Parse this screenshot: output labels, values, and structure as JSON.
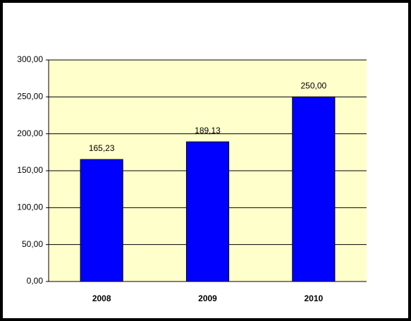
{
  "chart_data": {
    "type": "bar",
    "categories": [
      "2008",
      "2009",
      "2010"
    ],
    "values": [
      165.23,
      189.13,
      250
    ],
    "value_labels": [
      "165,23",
      "189,13",
      "250,00"
    ],
    "color": "#0000ff",
    "ylim": [
      0,
      300
    ],
    "yticks": [
      {
        "value": 0,
        "label": "0,00"
      },
      {
        "value": 50,
        "label": "50,00"
      },
      {
        "value": 100,
        "label": "100,00"
      },
      {
        "value": 150,
        "label": "150,00"
      },
      {
        "value": 200,
        "label": "200,00"
      },
      {
        "value": 250,
        "label": "250,00"
      },
      {
        "value": 300,
        "label": "300,00"
      }
    ],
    "grid": true
  }
}
